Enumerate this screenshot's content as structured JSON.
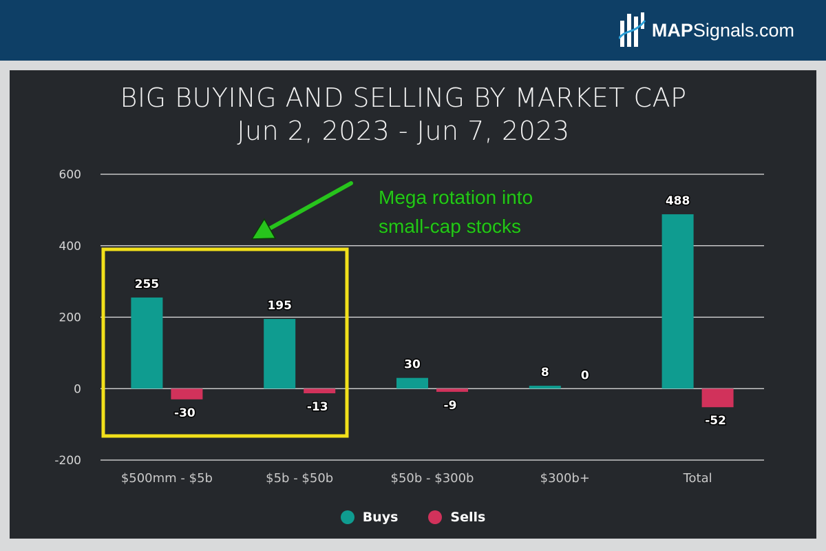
{
  "header": {
    "logo_bold": "MAP",
    "logo_rest": "Signals.com",
    "logo_icon": "bar-chart-logo-icon"
  },
  "colors": {
    "header_bg": "#0e3f66",
    "panel_bg": "#25282c",
    "buys": "#0f9c90",
    "sells": "#d1325b",
    "highlight_box": "#f2e01a",
    "annotation": "#27c41c"
  },
  "chart_data": {
    "type": "bar",
    "title": "BIG BUYING AND SELLING BY MARKET CAP",
    "subtitle": "Jun 2, 2023 - Jun 7, 2023",
    "categories": [
      "$500mm - $5b",
      "$5b - $50b",
      "$50b - $300b",
      "$300b+",
      "Total"
    ],
    "series": [
      {
        "name": "Buys",
        "values": [
          255,
          195,
          30,
          8,
          488
        ]
      },
      {
        "name": "Sells",
        "values": [
          -30,
          -13,
          -9,
          0,
          -52
        ]
      }
    ],
    "data_labels": {
      "Buys": [
        "255",
        "195",
        "30",
        "8",
        "488"
      ],
      "Sells": [
        "-30",
        "-13",
        "-9",
        "0",
        "-52"
      ]
    },
    "yticks": [
      "600",
      "400",
      "200",
      "0",
      "-200"
    ],
    "ylim": [
      -200,
      600
    ],
    "grid": true,
    "legend_placement": "bottom-center",
    "annotation": {
      "text_lines": [
        "Mega rotation into",
        "small-cap stocks"
      ],
      "highlights_categories": [
        "$500mm - $5b",
        "$5b - $50b"
      ]
    }
  }
}
